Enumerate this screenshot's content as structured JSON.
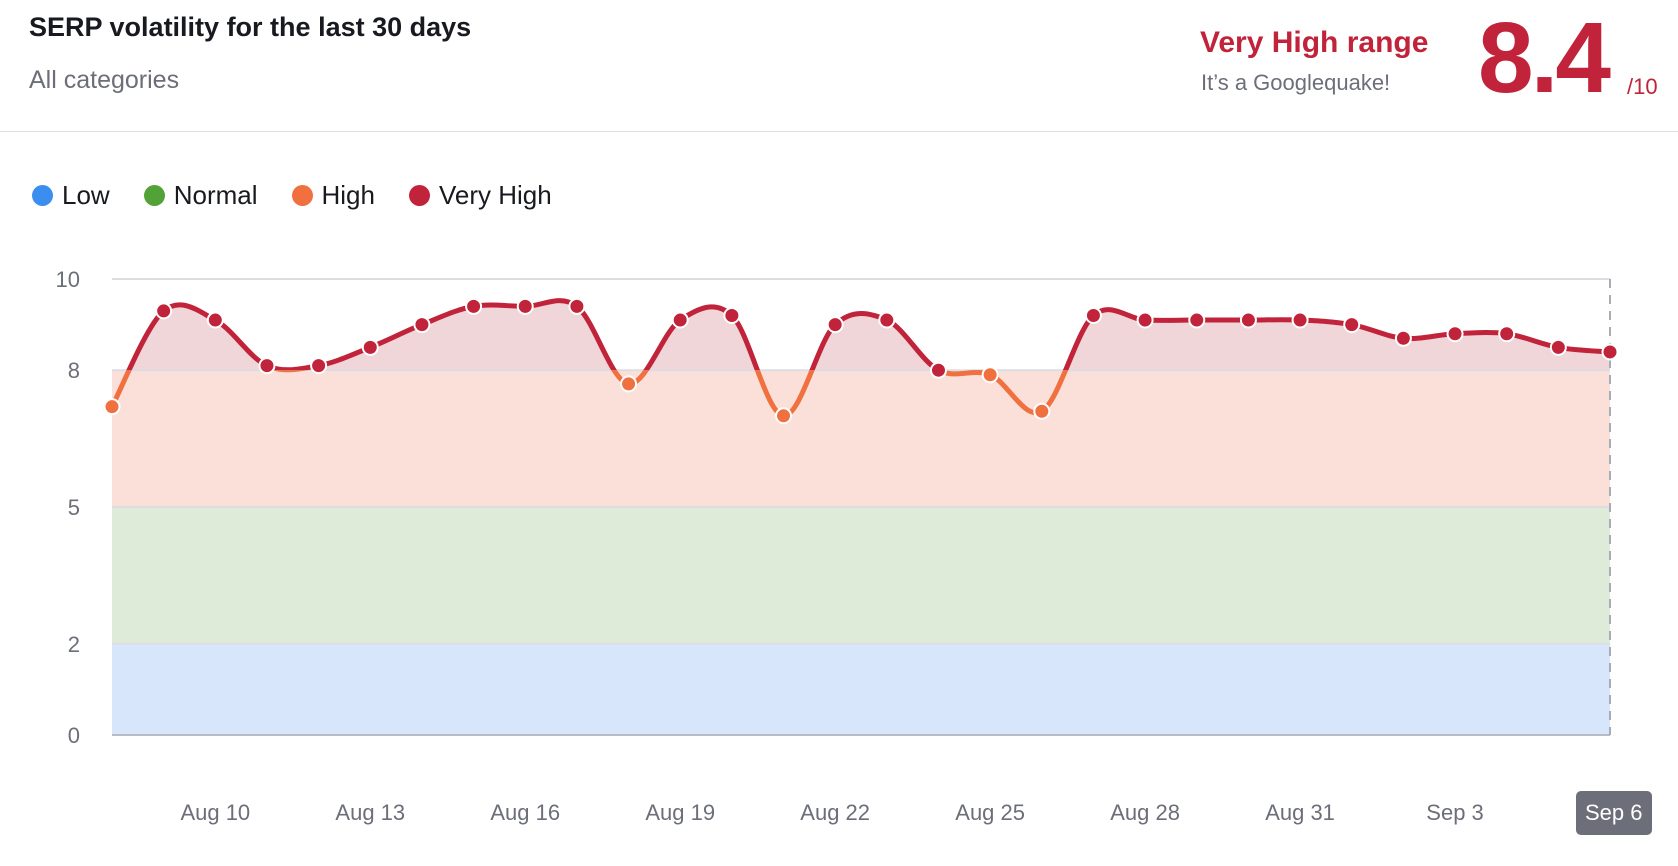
{
  "header": {
    "title": "SERP volatility for the last 30 days",
    "subtitle": "All categories",
    "range_label": "Very High range",
    "range_note": "It’s a Googlequake!",
    "score": "8.4",
    "score_max": "/10"
  },
  "colors": {
    "low": "#3b8ef0",
    "normal": "#52a238",
    "high": "#f07040",
    "very_high": "#c0233a"
  },
  "chart_data": {
    "type": "area",
    "legend": [
      {
        "label": "Low",
        "color": "#3b8ef0",
        "range": [
          0,
          2
        ]
      },
      {
        "label": "Normal",
        "color": "#52a238",
        "range": [
          2,
          5
        ]
      },
      {
        "label": "High",
        "color": "#f07040",
        "range": [
          5,
          8
        ]
      },
      {
        "label": "Very High",
        "color": "#c0233a",
        "range": [
          8,
          10
        ]
      }
    ],
    "legend_position": "top-left",
    "ylim": [
      0,
      10
    ],
    "yticks": [
      0,
      2,
      5,
      8,
      10
    ],
    "grid": true,
    "x": [
      "Aug 8",
      "Aug 9",
      "Aug 10",
      "Aug 11",
      "Aug 12",
      "Aug 13",
      "Aug 14",
      "Aug 15",
      "Aug 16",
      "Aug 17",
      "Aug 18",
      "Aug 19",
      "Aug 20",
      "Aug 21",
      "Aug 22",
      "Aug 23",
      "Aug 24",
      "Aug 25",
      "Aug 26",
      "Aug 27",
      "Aug 28",
      "Aug 29",
      "Aug 30",
      "Aug 31",
      "Sep 1",
      "Sep 2",
      "Sep 3",
      "Sep 4",
      "Sep 5",
      "Sep 6"
    ],
    "values": [
      7.2,
      9.3,
      9.1,
      8.1,
      8.1,
      8.5,
      9.0,
      9.4,
      9.4,
      9.4,
      7.7,
      9.1,
      9.2,
      7.0,
      9.0,
      9.1,
      8.0,
      7.9,
      7.1,
      9.2,
      9.1,
      9.1,
      9.1,
      9.1,
      9.0,
      8.7,
      8.8,
      8.8,
      8.5,
      8.4
    ],
    "xtick_labels": [
      "Aug 10",
      "Aug 13",
      "Aug 16",
      "Aug 19",
      "Aug 22",
      "Aug 25",
      "Aug 28",
      "Aug 31",
      "Sep 3",
      "Sep 6"
    ],
    "highlighted_x": "Sep 6"
  }
}
